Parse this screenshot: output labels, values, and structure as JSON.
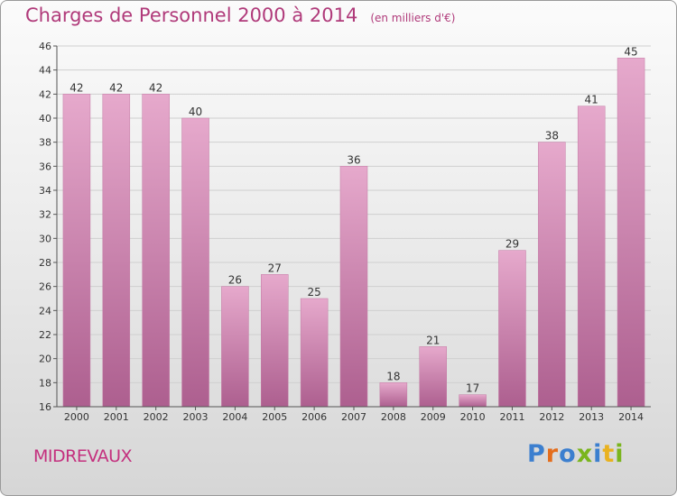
{
  "chart_data": {
    "type": "bar",
    "title": "Charges de Personnel 2000 à 2014",
    "subtitle": "(en milliers d'€)",
    "categories": [
      "2000",
      "2001",
      "2002",
      "2003",
      "2004",
      "2005",
      "2006",
      "2007",
      "2008",
      "2009",
      "2010",
      "2011",
      "2012",
      "2013",
      "2014"
    ],
    "values": [
      42,
      42,
      42,
      40,
      26,
      27,
      25,
      36,
      18,
      21,
      17,
      29,
      38,
      41,
      45
    ],
    "ylim": [
      16,
      46
    ],
    "yticks": [
      16,
      18,
      20,
      22,
      24,
      26,
      28,
      30,
      32,
      34,
      36,
      38,
      40,
      42,
      44,
      46
    ],
    "grid": true,
    "bar_color": "#c36b9f",
    "colors": {
      "title": "#b03a7a",
      "bar_light": "#e6a9cc",
      "bar_dark": "#ad5f8f"
    }
  },
  "footer": {
    "commune": "MIDREVAUX",
    "logo": "Proxiti",
    "logo_colors": [
      "#3c7fcf",
      "#e46d1c",
      "#3c7fcf",
      "#7ab51d",
      "#3c7fcf",
      "#e9b21f",
      "#7ab51d"
    ]
  }
}
